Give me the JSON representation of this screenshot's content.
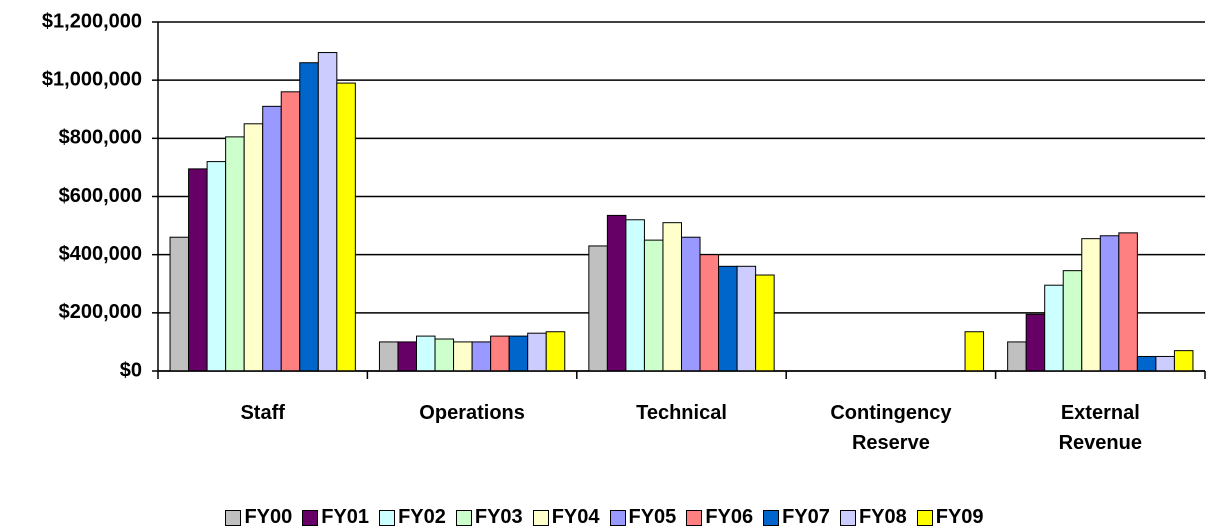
{
  "chart_data": {
    "type": "bar",
    "categories": [
      "Staff",
      "Operations",
      "Technical",
      "Contingency Reserve",
      "External Revenue"
    ],
    "series": [
      {
        "name": "FY00",
        "color": "#c0c0c0",
        "values": [
          460000,
          100000,
          430000,
          0,
          100000
        ]
      },
      {
        "name": "FY01",
        "color": "#660066",
        "values": [
          695000,
          100000,
          535000,
          0,
          195000
        ]
      },
      {
        "name": "FY02",
        "color": "#ccffff",
        "values": [
          720000,
          120000,
          520000,
          0,
          295000
        ]
      },
      {
        "name": "FY03",
        "color": "#ccffcc",
        "values": [
          805000,
          110000,
          450000,
          0,
          345000
        ]
      },
      {
        "name": "FY04",
        "color": "#ffffcc",
        "values": [
          850000,
          100000,
          510000,
          0,
          455000
        ]
      },
      {
        "name": "FY05",
        "color": "#9999ff",
        "values": [
          910000,
          100000,
          460000,
          0,
          465000
        ]
      },
      {
        "name": "FY06",
        "color": "#ff8080",
        "values": [
          960000,
          120000,
          400000,
          0,
          475000
        ]
      },
      {
        "name": "FY07",
        "color": "#0066cc",
        "values": [
          1060000,
          120000,
          360000,
          0,
          50000
        ]
      },
      {
        "name": "FY08",
        "color": "#ccccff",
        "values": [
          1095000,
          130000,
          360000,
          0,
          50000
        ]
      },
      {
        "name": "FY09",
        "color": "#ffff00",
        "values": [
          990000,
          135000,
          330000,
          135000,
          70000
        ]
      }
    ],
    "ylim": [
      0,
      1200000
    ],
    "yticks": [
      {
        "value": 0,
        "label": "$0"
      },
      {
        "value": 200000,
        "label": "$200,000"
      },
      {
        "value": 400000,
        "label": "$400,000"
      },
      {
        "value": 600000,
        "label": "$600,000"
      },
      {
        "value": 800000,
        "label": "$800,000"
      },
      {
        "value": 1000000,
        "label": "$1,000,000"
      },
      {
        "value": 1200000,
        "label": "$1,200,000"
      }
    ],
    "grid": true,
    "legend": "bottom"
  }
}
